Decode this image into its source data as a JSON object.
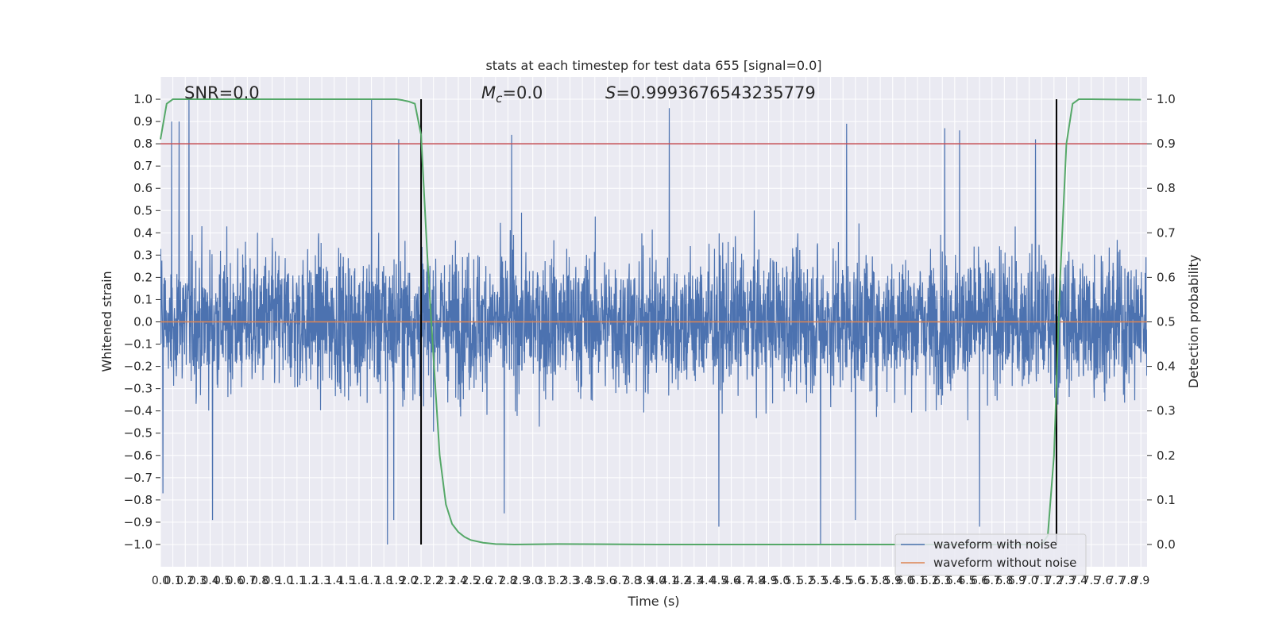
{
  "chart_data": {
    "type": "line",
    "title": "stats at each timestep for test data 655 [signal=0.0]",
    "xlabel": "Time (s)",
    "ylabel": "Whitened strain",
    "ylabel_right": "Detection probability",
    "xlim": [
      0.0,
      7.95
    ],
    "ylim": [
      -1.1,
      1.1
    ],
    "ylim_right": [
      -0.05,
      1.05
    ],
    "x_ticks": [
      "0.0",
      "0.1",
      "0.2",
      "0.3",
      "0.4",
      "0.5",
      "0.6",
      "0.7",
      "0.8",
      "0.9",
      "1.0",
      "1.1",
      "1.2",
      "1.3",
      "1.4",
      "1.5",
      "1.6",
      "1.7",
      "1.8",
      "1.9",
      "2.0",
      "2.1",
      "2.2",
      "2.3",
      "2.4",
      "2.5",
      "2.6",
      "2.7",
      "2.8",
      "2.9",
      "3.0",
      "3.1",
      "3.2",
      "3.3",
      "3.4",
      "3.5",
      "3.6",
      "3.7",
      "3.8",
      "3.9",
      "4.0",
      "4.1",
      "4.2",
      "4.3",
      "4.4",
      "4.5",
      "4.6",
      "4.7",
      "4.8",
      "4.9",
      "5.0",
      "5.1",
      "5.2",
      "5.3",
      "5.4",
      "5.5",
      "5.6",
      "5.7",
      "5.8",
      "5.9",
      "6.0",
      "6.1",
      "6.2",
      "6.3",
      "6.4",
      "6.5",
      "6.6",
      "6.7",
      "6.8",
      "6.9",
      "7.0",
      "7.1",
      "7.2",
      "7.3",
      "7.4",
      "7.5",
      "7.6",
      "7.7",
      "7.8",
      "7.9"
    ],
    "y_ticks": [
      "−1.0",
      "−0.9",
      "−0.8",
      "−0.7",
      "−0.6",
      "−0.5",
      "−0.4",
      "−0.3",
      "−0.2",
      "−0.1",
      "0.0",
      "0.1",
      "0.2",
      "0.3",
      "0.4",
      "0.5",
      "0.6",
      "0.7",
      "0.8",
      "0.9",
      "1.0"
    ],
    "y_ticks_right": [
      "0.0",
      "0.1",
      "0.2",
      "0.3",
      "0.4",
      "0.5",
      "0.6",
      "0.7",
      "0.8",
      "0.9",
      "1.0"
    ],
    "annotations": {
      "snr": "SNR=0.0",
      "mc_symbol": "M",
      "mc_subscript": "c",
      "mc_value": "=0.0",
      "s_symbol": "S",
      "s_value": "=0.9993676543235779"
    },
    "legend": {
      "placement": "lower-right",
      "entries": [
        "waveform with noise",
        "waveform without noise"
      ]
    },
    "series": [
      {
        "name": "waveform with noise",
        "color": "#4c72b0",
        "axis": "left",
        "envelope_typical": 0.4,
        "peak_max": 1.0,
        "peak_min": -1.0,
        "notable_peaks": [
          {
            "x": 0.02,
            "y": -0.77
          },
          {
            "x": 0.09,
            "y": 0.9
          },
          {
            "x": 0.15,
            "y": 0.9
          },
          {
            "x": 0.23,
            "y": 1.0
          },
          {
            "x": 0.42,
            "y": -0.89
          },
          {
            "x": 1.7,
            "y": 1.0
          },
          {
            "x": 1.83,
            "y": -1.0
          },
          {
            "x": 1.88,
            "y": -0.89
          },
          {
            "x": 1.92,
            "y": 0.82
          },
          {
            "x": 2.77,
            "y": -0.86
          },
          {
            "x": 2.83,
            "y": 0.84
          },
          {
            "x": 4.1,
            "y": 0.96
          },
          {
            "x": 4.5,
            "y": -0.92
          },
          {
            "x": 5.32,
            "y": -1.0
          },
          {
            "x": 5.53,
            "y": 0.89
          },
          {
            "x": 5.6,
            "y": -0.89
          },
          {
            "x": 6.6,
            "y": -0.92
          },
          {
            "x": 6.32,
            "y": 0.87
          },
          {
            "x": 6.44,
            "y": 0.86
          },
          {
            "x": 7.05,
            "y": 0.82
          }
        ]
      },
      {
        "name": "waveform without noise",
        "color": "#dd8452",
        "axis": "left",
        "x": [
          0.0,
          7.95
        ],
        "y": [
          0.0,
          0.0
        ]
      },
      {
        "name": "",
        "color": "#55a868",
        "axis": "right",
        "x": [
          0.0,
          0.05,
          0.1,
          0.15,
          0.3,
          0.6,
          1.0,
          1.5,
          1.9,
          1.95,
          2.0,
          2.05,
          2.1,
          2.15,
          2.2,
          2.25,
          2.3,
          2.35,
          2.4,
          2.45,
          2.5,
          2.6,
          2.7,
          2.85,
          3.2,
          4.0,
          5.0,
          6.0,
          6.8,
          7.0,
          7.1,
          7.15,
          7.2,
          7.25,
          7.3,
          7.35,
          7.4,
          7.5,
          7.9
        ],
        "y": [
          0.91,
          0.99,
          1.0,
          1.0,
          1.0,
          1.0,
          1.0,
          1.0,
          1.0,
          0.998,
          0.995,
          0.99,
          0.92,
          0.65,
          0.42,
          0.2,
          0.09,
          0.046,
          0.028,
          0.017,
          0.01,
          0.004,
          0.001,
          0.0,
          0.001,
          0.0,
          0.0,
          0.0,
          0.0,
          0.0,
          0.0,
          0.02,
          0.2,
          0.6,
          0.9,
          0.99,
          1.0,
          1.0,
          0.999
        ]
      }
    ],
    "threshold_line": {
      "color": "#c44e52",
      "y_right": 0.9
    },
    "vertical_markers": {
      "color": "#000000",
      "x": [
        2.1,
        7.22
      ],
      "y_range": [
        -1.0,
        1.0
      ]
    },
    "grid": true,
    "background": "#eaeaf2"
  }
}
